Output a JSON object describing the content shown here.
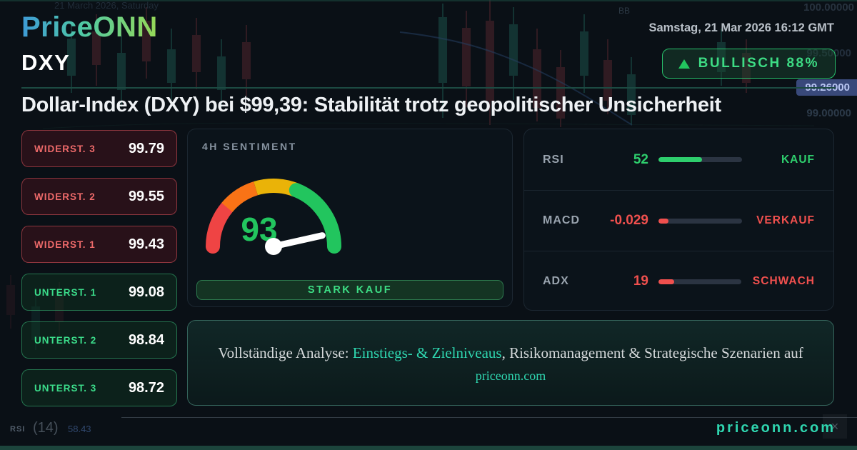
{
  "header": {
    "logo": "PriceONN",
    "date": "Samstag, 21 Mar 2026 16:12 GMT",
    "symbol": "DXY",
    "badge": "BULLISCH 88%",
    "headline": "Dollar-Index (DXY) bei $99,39: Stabilität trotz geopolitischer Unsicherheit"
  },
  "levels": {
    "resistance": [
      {
        "label": "WIDERST. 3",
        "value": "99.79"
      },
      {
        "label": "WIDERST. 2",
        "value": "99.55"
      },
      {
        "label": "WIDERST. 1",
        "value": "99.43"
      }
    ],
    "support": [
      {
        "label": "UNTERST. 1",
        "value": "99.08"
      },
      {
        "label": "UNTERST. 2",
        "value": "98.84"
      },
      {
        "label": "UNTERST. 3",
        "value": "98.72"
      }
    ]
  },
  "sentiment": {
    "title": "4H SENTIMENT",
    "value": 93,
    "signal": "STARK KAUF"
  },
  "indicators": [
    {
      "name": "RSI",
      "value": "52",
      "signal": "KAUF",
      "state": "green",
      "fill_pct": 52
    },
    {
      "name": "MACD",
      "value": "-0.029",
      "signal": "VERKAUF",
      "state": "red",
      "fill_pct": 12
    },
    {
      "name": "ADX",
      "value": "19",
      "signal": "SCHWACH",
      "state": "red",
      "fill_pct": 19
    }
  ],
  "banner": {
    "prefix": "Vollständige Analyse: ",
    "highlight": "Einstiegs- & Zielniveaus",
    "suffix": ", Risikomanagement & Strategische Szenarien auf",
    "domain": "priceonn.com"
  },
  "footer": {
    "site": "priceonn.com"
  },
  "watermarks": {
    "date_text": "21 March 2026, Saturday",
    "bb": "BB",
    "price_top": "100.00000",
    "price_mid": "99.50000",
    "price_badge": "99.26000",
    "price_low": "99.00000",
    "rsi_label": "RSI",
    "rsi_period": "(14)",
    "rsi_value": "58.43",
    "close_glyph": "×"
  },
  "colors": {
    "green": "#22c55e",
    "red": "#f0504e",
    "teal": "#2fd6b0",
    "orange": "#f97316",
    "yellow": "#eab308"
  }
}
